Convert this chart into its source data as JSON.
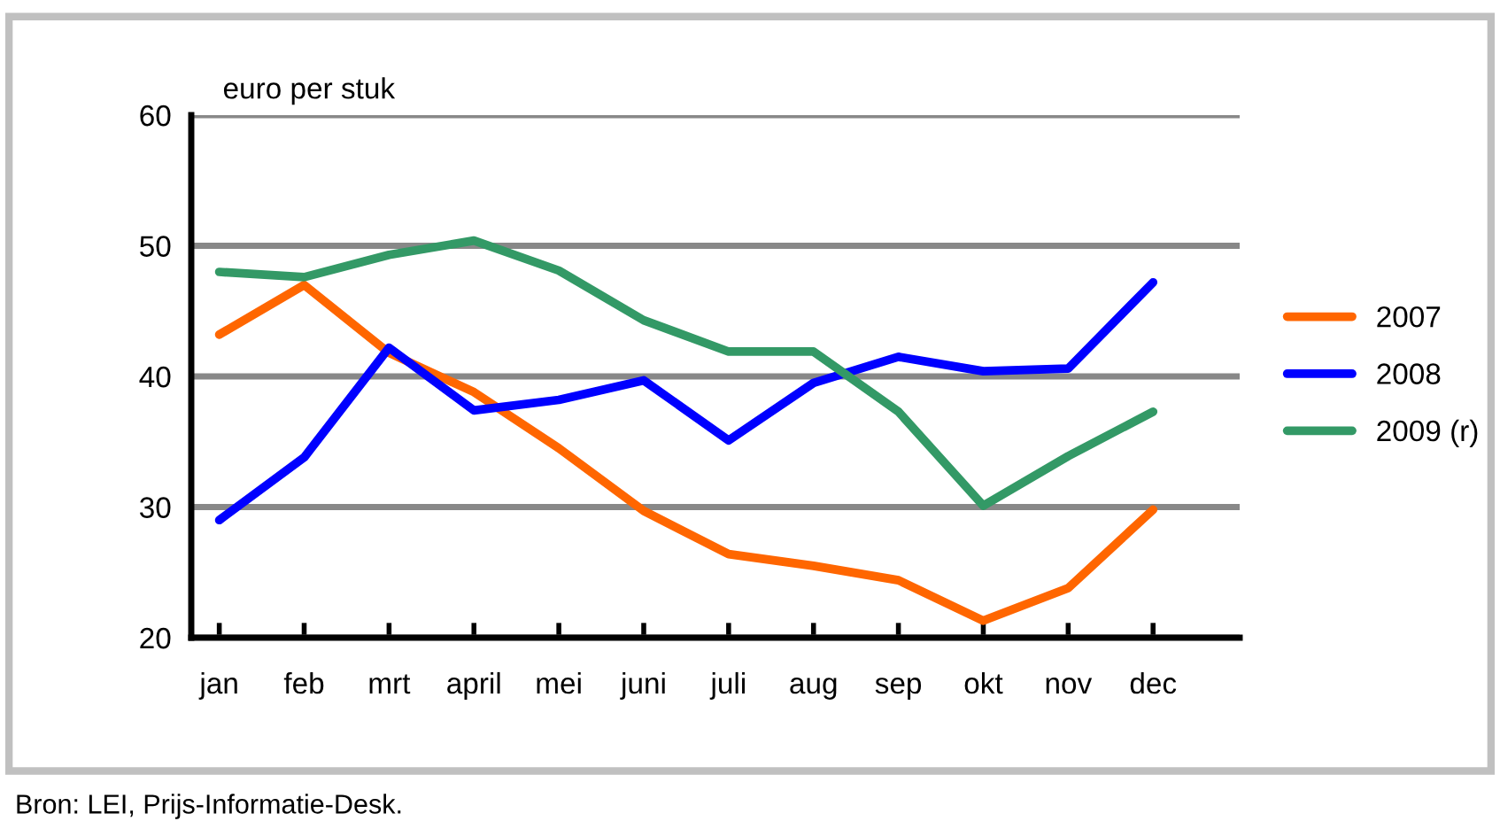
{
  "chart_data": {
    "type": "line",
    "ylabel": "euro per stuk",
    "categories": [
      "jan",
      "feb",
      "mrt",
      "april",
      "mei",
      "juni",
      "juli",
      "aug",
      "sep",
      "okt",
      "nov",
      "dec"
    ],
    "series": [
      {
        "name": "2007",
        "color": "#ff6600",
        "values": [
          43.2,
          47,
          41.8,
          38.8,
          34.5,
          29.7,
          26.4,
          25.5,
          24.4,
          21.3,
          23.8,
          29.8
        ]
      },
      {
        "name": "2008",
        "color": "#0000ff",
        "values": [
          29,
          33.8,
          42.2,
          37.4,
          38.2,
          39.7,
          35.1,
          39.5,
          41.5,
          40.4,
          40.6,
          47.2
        ]
      },
      {
        "name": "2009 (r)",
        "color": "#339966",
        "values": [
          48,
          47.6,
          49.3,
          50.4,
          48.1,
          44.3,
          41.9,
          41.9,
          37.3,
          30.1,
          33.9,
          37.3
        ]
      }
    ],
    "ylim": [
      20,
      60
    ],
    "yticks": [
      20,
      30,
      40,
      50,
      60
    ],
    "grid": "y",
    "legend": "right",
    "marker": "none",
    "line_style": "solid",
    "annotations": [
      "Bron: LEI, Prijs-Informatie-Desk."
    ]
  }
}
